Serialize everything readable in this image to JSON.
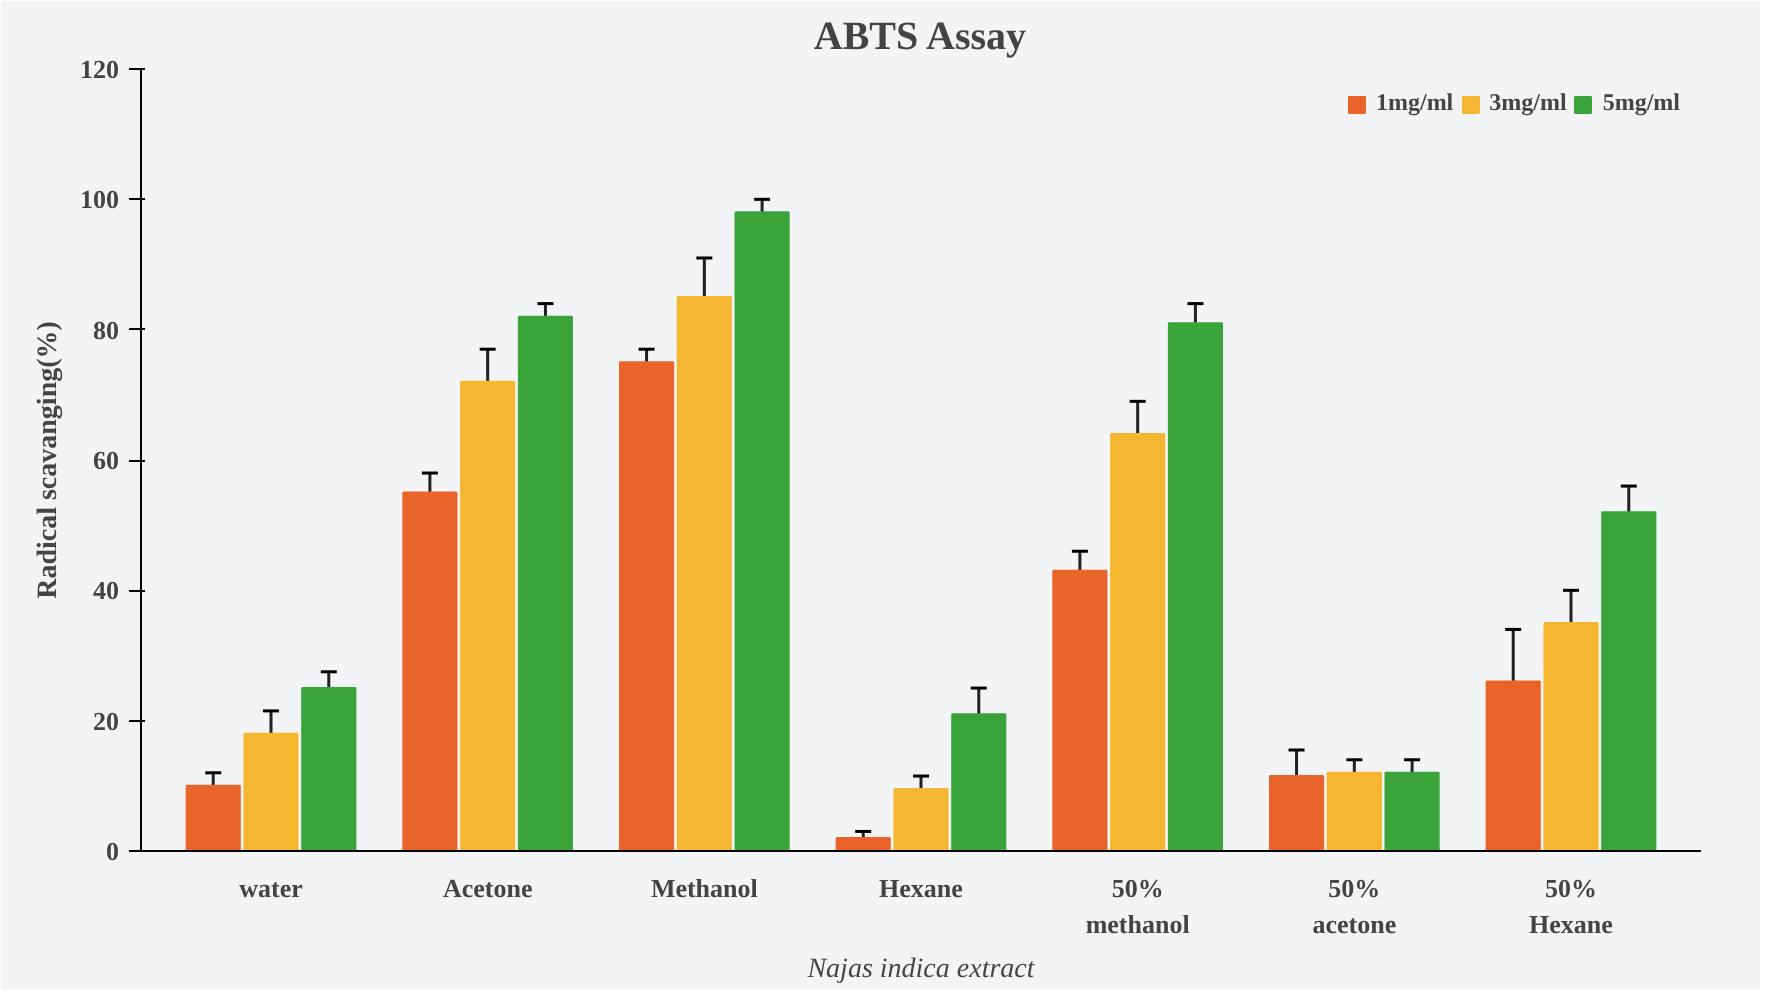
{
  "chart_data": {
    "type": "bar",
    "title": "ABTS Assay",
    "xlabel": "Najas indica extract",
    "ylabel": "Radical scavanging(%)",
    "categories": [
      "water",
      "Acetone",
      "Methanol",
      "Hexane",
      "50%\nmethanol",
      "50%\nacetone",
      "50%\nHexane"
    ],
    "series": [
      {
        "name": "1mg/ml",
        "color": "#e8642a",
        "values": [
          10,
          55,
          75,
          2,
          43,
          11.5,
          26
        ],
        "errors": [
          2,
          3,
          2,
          1,
          3,
          4,
          8
        ]
      },
      {
        "name": "3mg/ml",
        "color": "#f5b731",
        "values": [
          18,
          72,
          85,
          9.5,
          64,
          12,
          35
        ],
        "errors": [
          3.5,
          5,
          6,
          2,
          5,
          2,
          5
        ]
      },
      {
        "name": "5mg/ml",
        "color": "#3aa43a",
        "values": [
          25,
          82,
          98,
          21,
          81,
          12,
          52
        ],
        "errors": [
          2.5,
          2,
          2,
          4,
          3,
          2,
          4
        ]
      }
    ],
    "ylim": [
      0,
      120
    ],
    "yticks": [
      0,
      20,
      40,
      60,
      80,
      100,
      120
    ],
    "grid": false,
    "legend": "top right"
  }
}
